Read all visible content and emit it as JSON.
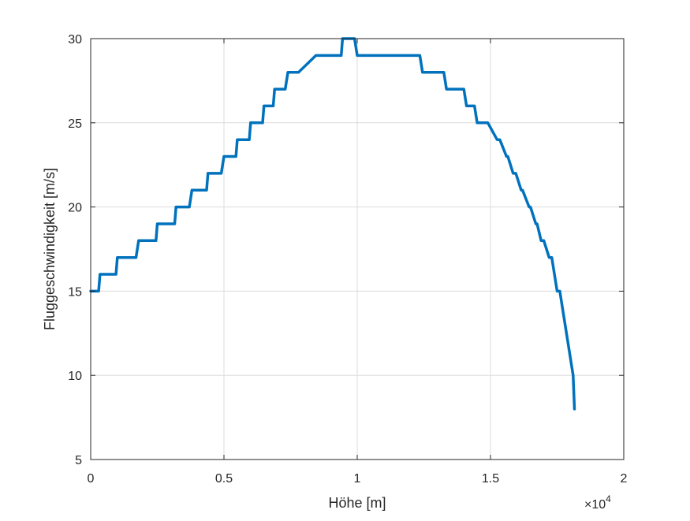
{
  "chart_data": {
    "type": "line",
    "title": "",
    "xlabel": "Höhe [m]",
    "ylabel": "Fluggeschwindigkeit [m/s]",
    "x_exponent_label": "×10",
    "x_exponent_power": "4",
    "xlim": [
      0,
      20000
    ],
    "ylim": [
      5,
      30
    ],
    "xticks": [
      0,
      5000,
      10000,
      15000,
      20000
    ],
    "xtick_labels": [
      "0",
      "0.5",
      "1",
      "1.5",
      "2"
    ],
    "yticks": [
      5,
      10,
      15,
      20,
      25,
      30
    ],
    "ytick_labels": [
      "5",
      "10",
      "15",
      "20",
      "25",
      "30"
    ],
    "grid": true,
    "legend": "none",
    "series": [
      {
        "color": "#0072BD",
        "x": [
          0,
          300,
          350,
          950,
          1000,
          1700,
          1800,
          2450,
          2500,
          3150,
          3200,
          3700,
          3800,
          4350,
          4400,
          4900,
          5000,
          5450,
          5500,
          5950,
          6000,
          6450,
          6500,
          6850,
          6900,
          7300,
          7400,
          7750,
          7800,
          8450,
          8550,
          9400,
          9450,
          9900,
          10000,
          12350,
          12450,
          13250,
          13350,
          14000,
          14100,
          14400,
          14500,
          14850,
          14900,
          15250,
          15350,
          15600,
          15650,
          15850,
          15950,
          16150,
          16200,
          16450,
          16500,
          16700,
          16750,
          16900,
          17000,
          17200,
          17300,
          17500,
          17600,
          18100,
          18150
        ],
        "y": [
          15,
          15,
          16,
          16,
          17,
          17,
          18,
          18,
          19,
          19,
          20,
          20,
          21,
          21,
          22,
          22,
          23,
          23,
          24,
          24,
          25,
          25,
          26,
          26,
          27,
          27,
          28,
          28,
          28,
          29,
          29,
          29,
          30,
          30,
          29,
          29,
          28,
          28,
          27,
          27,
          26,
          26,
          25,
          25,
          25,
          24,
          24,
          23,
          23,
          22,
          22,
          21,
          21,
          20,
          20,
          19,
          19,
          18,
          18,
          17,
          17,
          15,
          15,
          10,
          8
        ]
      }
    ]
  }
}
